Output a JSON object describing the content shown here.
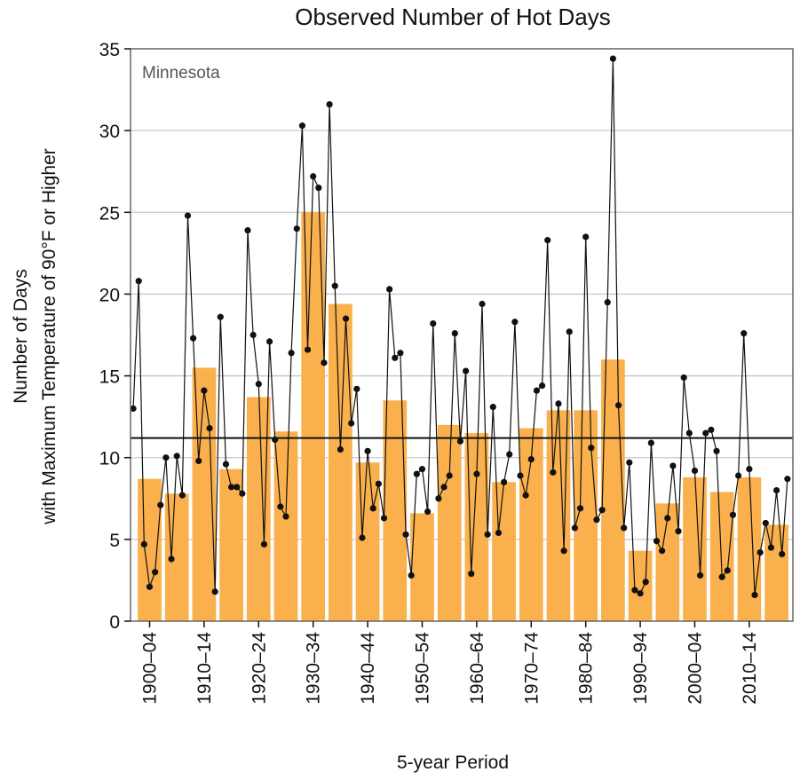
{
  "chart_data": {
    "type": "bar",
    "title": "Observed Number of Hot Days",
    "annotation": "Minnesota",
    "xlabel": "5-year Period",
    "ylabel_line1": "Number of Days",
    "ylabel_line2": "with Maximum Temperature of 90°F or Higher",
    "ylim": [
      0,
      35
    ],
    "yticks": [
      "0",
      "5",
      "10",
      "15",
      "20",
      "25",
      "30",
      "35"
    ],
    "grid": true,
    "categories": [
      "1900–04",
      "1905–09",
      "1910–14",
      "1915–19",
      "1920–24",
      "1925–29",
      "1930–34",
      "1935–39",
      "1940–44",
      "1945–49",
      "1950–54",
      "1955–59",
      "1960–64",
      "1965–69",
      "1970–74",
      "1975–79",
      "1980–84",
      "1985–89",
      "1990–94",
      "1995–99",
      "2000–04",
      "2005–09",
      "2010–14",
      "2015–19"
    ],
    "xtick_labels": [
      "1900–04",
      "1910–14",
      "1920–24",
      "1930–34",
      "1940–44",
      "1950–54",
      "1960–64",
      "1970–74",
      "1980–84",
      "1990–94",
      "2000–04",
      "2010–14"
    ],
    "values": [
      8.7,
      7.8,
      15.5,
      9.3,
      13.7,
      11.6,
      25.0,
      19.4,
      9.7,
      13.5,
      6.6,
      12.0,
      11.5,
      8.5,
      11.8,
      12.9,
      12.9,
      16.0,
      4.3,
      7.2,
      8.8,
      7.9,
      8.8,
      5.9
    ],
    "annual": {
      "start_year": 1899,
      "values": [
        13.0,
        20.8,
        4.7,
        2.1,
        3.0,
        7.1,
        10.0,
        3.8,
        10.1,
        7.7,
        24.8,
        17.3,
        9.8,
        14.1,
        11.8,
        1.8,
        18.6,
        9.6,
        8.2,
        8.2,
        7.8,
        23.9,
        17.5,
        14.5,
        4.7,
        17.1,
        11.1,
        7.0,
        6.4,
        16.4,
        24.0,
        30.3,
        16.6,
        27.2,
        26.5,
        15.8,
        31.6,
        20.5,
        10.5,
        18.5,
        12.1,
        14.2,
        5.1,
        10.4,
        6.9,
        8.4,
        6.3,
        20.3,
        16.1,
        16.4,
        5.3,
        2.8,
        9.0,
        9.3,
        6.7,
        18.2,
        7.5,
        8.2,
        8.9,
        17.6,
        11.0,
        15.3,
        2.9,
        9.0,
        19.4,
        5.3,
        13.1,
        5.4,
        8.5,
        10.2,
        18.3,
        8.9,
        7.7,
        9.9,
        14.1,
        14.4,
        23.3,
        9.1,
        13.3,
        4.3,
        17.7,
        5.7,
        6.9,
        23.5,
        10.6,
        6.2,
        6.8,
        19.5,
        34.4,
        13.2,
        5.7,
        9.7,
        1.9,
        1.7,
        2.4,
        10.9,
        4.9,
        4.3,
        6.3,
        9.5,
        5.5,
        14.9,
        11.5,
        9.2,
        2.8,
        11.5,
        11.7,
        10.4,
        2.7,
        3.1,
        6.5,
        8.9,
        17.6,
        9.3,
        1.6,
        4.2,
        6.0,
        4.5,
        8.0,
        4.1,
        8.7
      ]
    },
    "reference_line": 11.2,
    "colors": {
      "bar": "#fbb04e",
      "line": "#111111",
      "grid": "#c8c8c8",
      "frame": "#666666"
    }
  }
}
